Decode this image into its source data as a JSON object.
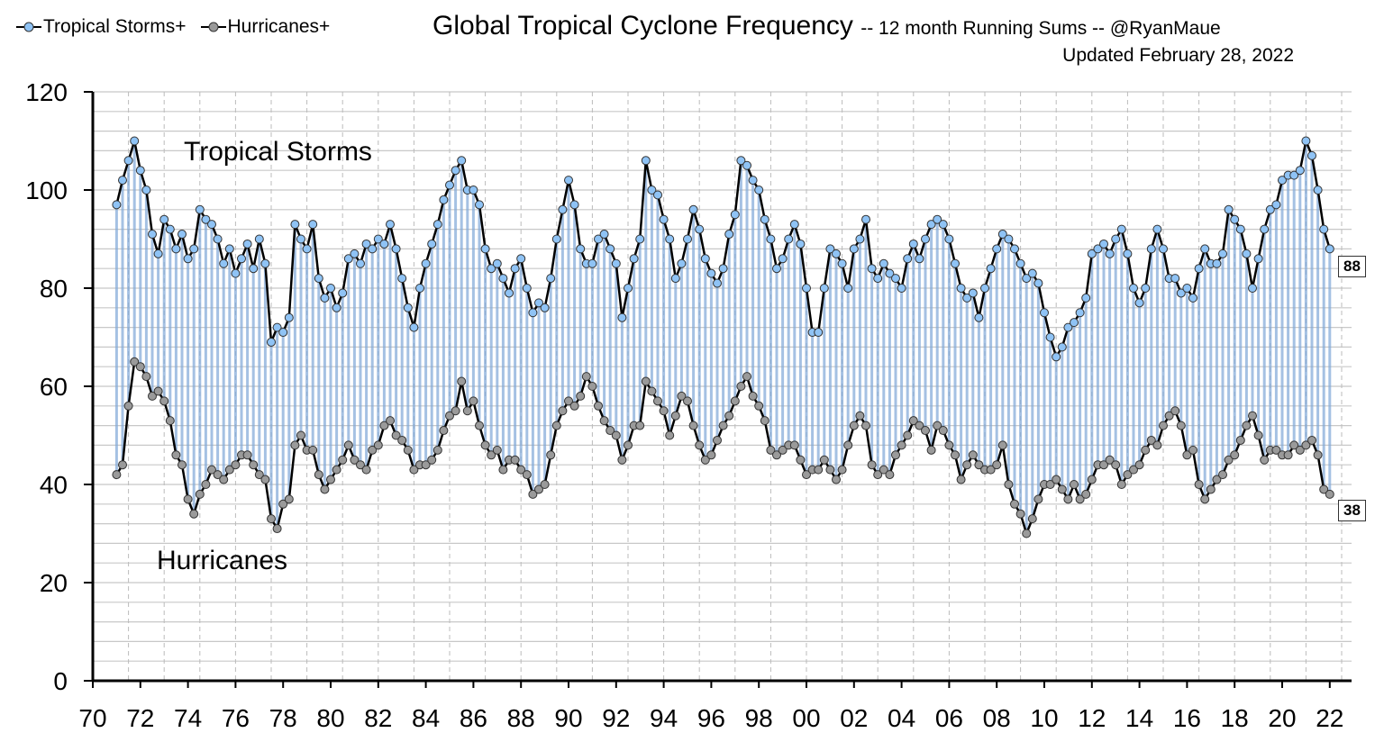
{
  "chart_data": {
    "type": "line",
    "title": "Global Tropical Cyclone Frequency",
    "subtitle": "-- 12 month Running Sums -- @RyanMaue",
    "updated": "Updated February 28, 2022",
    "xlabel": "",
    "ylabel": "",
    "ylim": [
      0,
      120
    ],
    "y_ticks": [
      "0",
      "20",
      "40",
      "60",
      "80",
      "100",
      "120"
    ],
    "x_ticks": [
      "70",
      "72",
      "74",
      "76",
      "78",
      "80",
      "82",
      "84",
      "86",
      "88",
      "90",
      "92",
      "94",
      "96",
      "98",
      "00",
      "02",
      "04",
      "06",
      "08",
      "10",
      "12",
      "14",
      "16",
      "18",
      "20",
      "22"
    ],
    "xlim": [
      1970,
      2023
    ],
    "grid": true,
    "legend_position": "top-left",
    "legend": [
      "Tropical Storms+",
      "Hurricanes+"
    ],
    "annotations": {
      "tropical_storms": "Tropical Storms",
      "hurricanes": "Hurricanes"
    },
    "end_labels": {
      "tropical_storms": "88",
      "hurricanes": "38"
    },
    "sampling": "quarterly values (Jan, Apr, Jul, Oct) per year",
    "series": [
      {
        "name": "Tropical Storms+",
        "color": "#8fc3f5",
        "values_by_year": {
          "1971": [
            97,
            102,
            106,
            110
          ],
          "1972": [
            104,
            100,
            91,
            87
          ],
          "1973": [
            94,
            92,
            88,
            91
          ],
          "1974": [
            86,
            88,
            96,
            94
          ],
          "1975": [
            93,
            90,
            85,
            88
          ],
          "1976": [
            83,
            86,
            89,
            84
          ],
          "1977": [
            90,
            85,
            69,
            72
          ],
          "1978": [
            71,
            74,
            93,
            90
          ],
          "1979": [
            88,
            93,
            82,
            78
          ],
          "1980": [
            80,
            76,
            79,
            86
          ],
          "1981": [
            87,
            85,
            89,
            88
          ],
          "1982": [
            90,
            89,
            93,
            88
          ],
          "1983": [
            82,
            76,
            72,
            80
          ],
          "1984": [
            85,
            89,
            93,
            98
          ],
          "1985": [
            101,
            104,
            106,
            100
          ],
          "1986": [
            100,
            97,
            88,
            84
          ],
          "1987": [
            85,
            82,
            79,
            84
          ],
          "1988": [
            86,
            80,
            75,
            77
          ],
          "1989": [
            76,
            82,
            90,
            96
          ],
          "1990": [
            102,
            97,
            88,
            85
          ],
          "1991": [
            85,
            90,
            91,
            88
          ],
          "1992": [
            85,
            74,
            80,
            86
          ],
          "1993": [
            90,
            106,
            100,
            99
          ],
          "1994": [
            94,
            90,
            82,
            85
          ],
          "1995": [
            90,
            96,
            92,
            86
          ],
          "1996": [
            83,
            81,
            84,
            91
          ],
          "1997": [
            95,
            106,
            105,
            102
          ],
          "1998": [
            100,
            94,
            90,
            84
          ],
          "1999": [
            86,
            90,
            93,
            89
          ],
          "2000": [
            80,
            71,
            71,
            80
          ],
          "2001": [
            88,
            87,
            85,
            80
          ],
          "2002": [
            88,
            90,
            94,
            84
          ],
          "2003": [
            82,
            85,
            83,
            82
          ],
          "2004": [
            80,
            86,
            89,
            86
          ],
          "2005": [
            90,
            93,
            94,
            93
          ],
          "2006": [
            90,
            85,
            80,
            78
          ],
          "2007": [
            79,
            74,
            80,
            84
          ],
          "2008": [
            88,
            91,
            90,
            88
          ],
          "2009": [
            85,
            82,
            83,
            81
          ],
          "2010": [
            75,
            70,
            66,
            68
          ],
          "2011": [
            72,
            73,
            75,
            78
          ],
          "2012": [
            87,
            88,
            89,
            87
          ],
          "2013": [
            90,
            92,
            87,
            80
          ],
          "2014": [
            77,
            80,
            88,
            92
          ],
          "2015": [
            88,
            82,
            82,
            79
          ],
          "2016": [
            80,
            78,
            84,
            88
          ],
          "2017": [
            85,
            85,
            87,
            96
          ],
          "2018": [
            94,
            92,
            87,
            80
          ],
          "2019": [
            86,
            92,
            96,
            97
          ],
          "2020": [
            102,
            103,
            103,
            104
          ],
          "2021": [
            110,
            107,
            100,
            92
          ],
          "2022": [
            88
          ]
        }
      },
      {
        "name": "Hurricanes+",
        "color": "#9a9a9a",
        "values_by_year": {
          "1971": [
            42,
            44,
            56,
            65
          ],
          "1972": [
            64,
            62,
            58,
            59
          ],
          "1973": [
            57,
            53,
            46,
            44
          ],
          "1974": [
            37,
            34,
            38,
            40
          ],
          "1975": [
            43,
            42,
            41,
            43
          ],
          "1976": [
            44,
            46,
            46,
            44
          ],
          "1977": [
            42,
            41,
            33,
            31
          ],
          "1978": [
            36,
            37,
            48,
            50
          ],
          "1979": [
            47,
            47,
            42,
            39
          ],
          "1980": [
            41,
            43,
            45,
            48
          ],
          "1981": [
            45,
            44,
            43,
            47
          ],
          "1982": [
            48,
            52,
            53,
            50
          ],
          "1983": [
            49,
            47,
            43,
            44
          ],
          "1984": [
            44,
            45,
            47,
            51
          ],
          "1985": [
            54,
            55,
            61,
            55
          ],
          "1986": [
            57,
            52,
            48,
            46
          ],
          "1987": [
            47,
            43,
            45,
            45
          ],
          "1988": [
            43,
            42,
            38,
            39
          ],
          "1989": [
            40,
            46,
            52,
            55
          ],
          "1990": [
            57,
            56,
            58,
            62
          ],
          "1991": [
            60,
            56,
            53,
            51
          ],
          "1992": [
            50,
            45,
            48,
            52
          ],
          "1993": [
            52,
            61,
            59,
            57
          ],
          "1994": [
            55,
            50,
            54,
            58
          ],
          "1995": [
            57,
            52,
            48,
            45
          ],
          "1996": [
            46,
            49,
            52,
            54
          ],
          "1997": [
            57,
            60,
            62,
            58
          ],
          "1998": [
            56,
            53,
            47,
            46
          ],
          "1999": [
            47,
            48,
            48,
            45
          ],
          "2000": [
            42,
            43,
            43,
            45
          ],
          "2001": [
            43,
            41,
            43,
            48
          ],
          "2002": [
            52,
            54,
            52,
            44
          ],
          "2003": [
            42,
            43,
            42,
            46
          ],
          "2004": [
            48,
            50,
            53,
            52
          ],
          "2005": [
            51,
            47,
            52,
            51
          ],
          "2006": [
            48,
            46,
            41,
            44
          ],
          "2007": [
            46,
            44,
            43,
            43
          ],
          "2008": [
            44,
            48,
            40,
            36
          ],
          "2009": [
            34,
            30,
            33,
            37
          ],
          "2010": [
            40,
            40,
            41,
            39
          ],
          "2011": [
            37,
            40,
            37,
            38
          ],
          "2012": [
            41,
            44,
            44,
            45
          ],
          "2013": [
            44,
            40,
            42,
            43
          ],
          "2014": [
            44,
            47,
            49,
            48
          ],
          "2015": [
            52,
            54,
            55,
            52
          ],
          "2016": [
            46,
            47,
            40,
            37
          ],
          "2017": [
            39,
            41,
            42,
            45
          ],
          "2018": [
            46,
            49,
            52,
            54
          ],
          "2019": [
            50,
            45,
            47,
            47
          ],
          "2020": [
            46,
            46,
            48,
            47
          ],
          "2021": [
            48,
            49,
            46,
            39
          ],
          "2022": [
            38
          ]
        }
      }
    ]
  }
}
